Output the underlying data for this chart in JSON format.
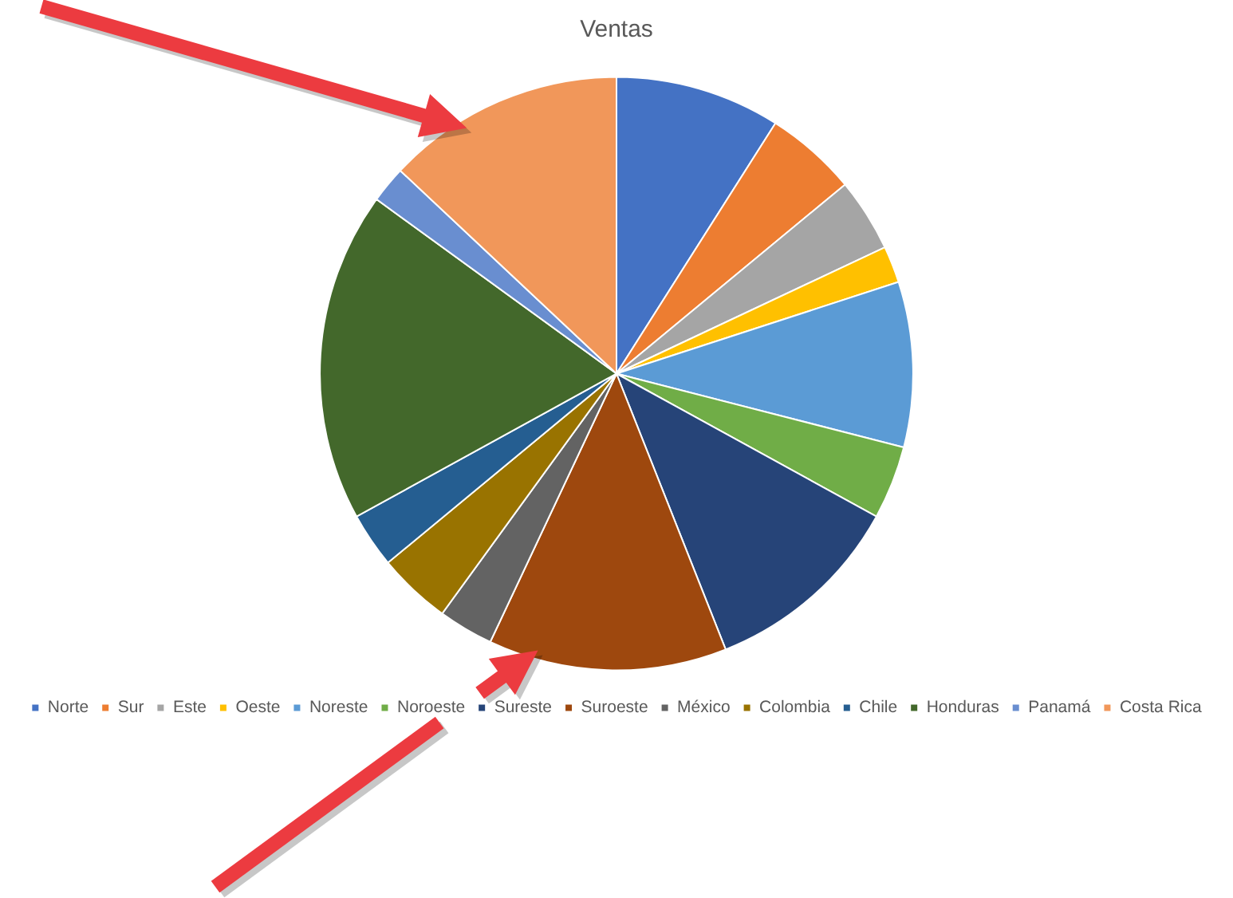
{
  "chart_data": {
    "type": "pie",
    "title": "Ventas",
    "categories": [
      "Norte",
      "Sur",
      "Este",
      "Oeste",
      "Noreste",
      "Noroeste",
      "Sureste",
      "Suroeste",
      "México",
      "Colombia",
      "Chile",
      "Honduras",
      "Panamá",
      "Costa Rica"
    ],
    "values": [
      9,
      5,
      4,
      2,
      9,
      4,
      11,
      13,
      3,
      4,
      3,
      18,
      2,
      13
    ],
    "colors": [
      "#4472c4",
      "#ed7d31",
      "#a5a5a5",
      "#ffc000",
      "#5b9bd5",
      "#70ad47",
      "#264478",
      "#9e480e",
      "#636363",
      "#997300",
      "#255e91",
      "#43682b",
      "#698ed0",
      "#f1975a"
    ],
    "legend": "bottom"
  }
}
